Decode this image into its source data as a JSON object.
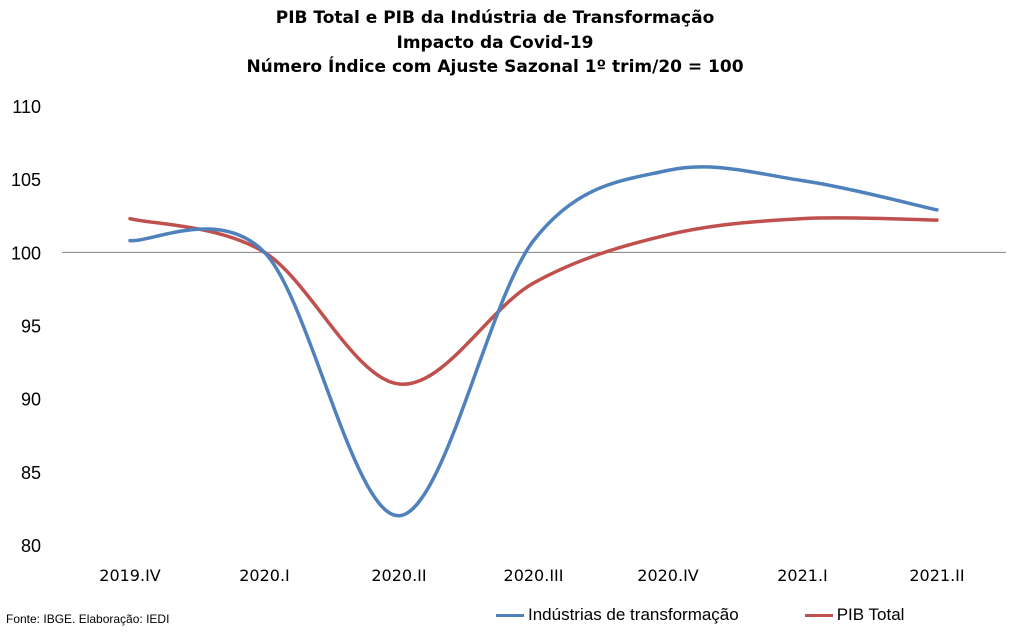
{
  "chart_data": {
    "type": "line",
    "title": [
      "PIB Total e PIB da Indústria de Transformação",
      "Impacto da Covid-19",
      "Número Índice com Ajuste Sazonal 1º trim/20 = 100"
    ],
    "categories": [
      "2019.IV",
      "2020.I",
      "2020.II",
      "2020.III",
      "2020.IV",
      "2021.I",
      "2021.II"
    ],
    "ylim": [
      80,
      110
    ],
    "yticks": [
      "110",
      "105",
      "100",
      "95",
      "90",
      "85",
      "80"
    ],
    "reference_line": 100,
    "series": [
      {
        "name": "Indústrias de transformação",
        "color": "#4F81BD",
        "values": [
          100.8,
          100.0,
          82.0,
          100.8,
          105.6,
          104.9,
          102.9
        ]
      },
      {
        "name": "PIB Total",
        "color": "#C0504D",
        "values": [
          102.3,
          100.0,
          91.0,
          97.9,
          101.2,
          102.3,
          102.2
        ]
      }
    ],
    "legend_position": "bottom-right",
    "source": "Fonte: IBGE. Elaboração: IEDI"
  }
}
